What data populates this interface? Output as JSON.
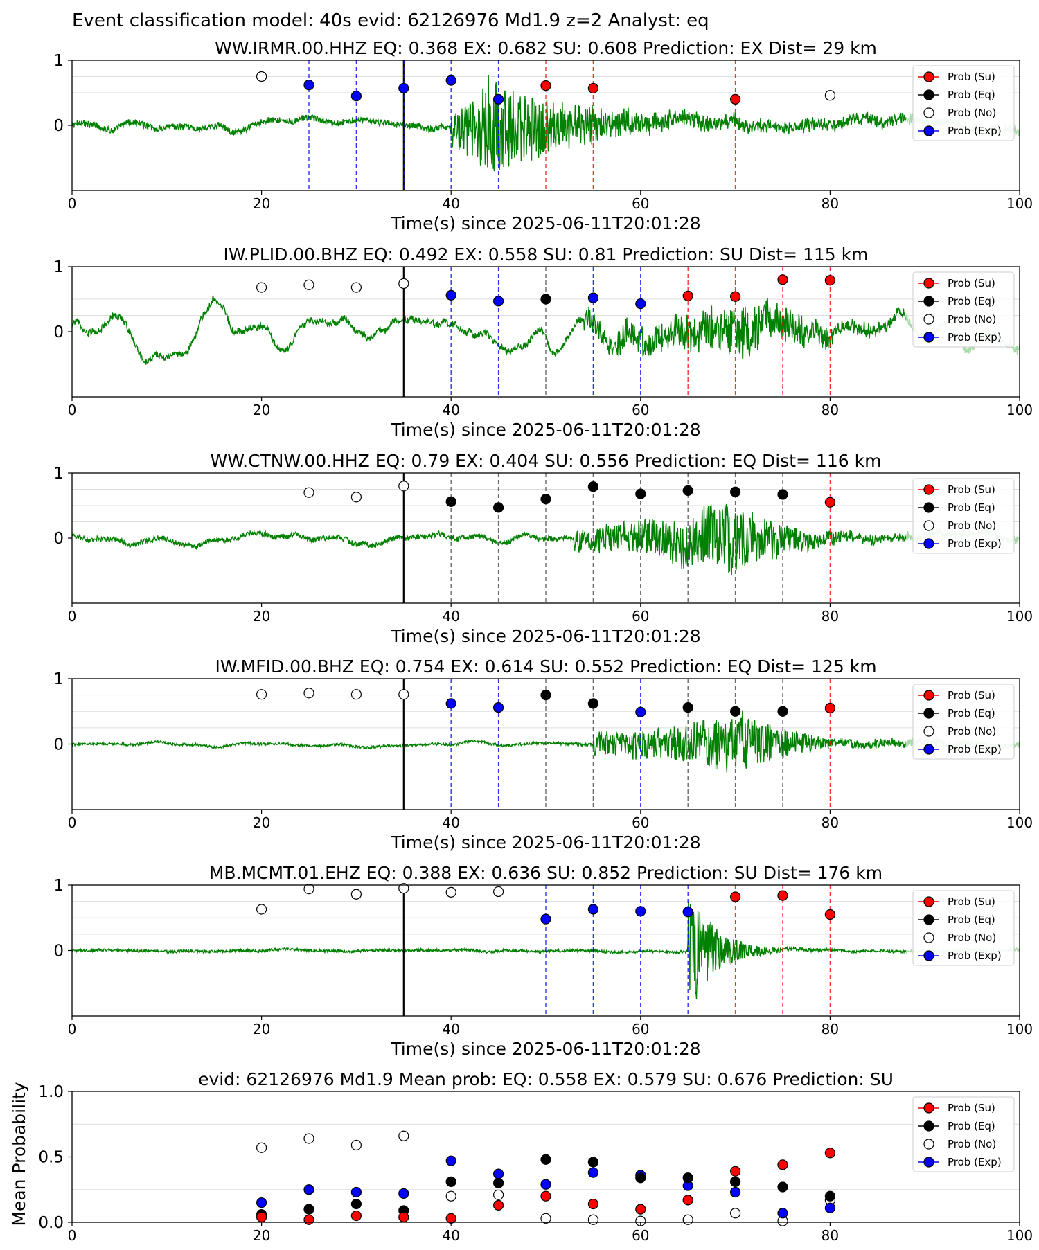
{
  "suptitle": "Event classification model: 40s evid: 62126976 Md1.9 z=2 Analyst: eq",
  "legend": [
    "Prob (Su)",
    "Prob (Eq)",
    "Prob (No)",
    "Prob (Exp)"
  ],
  "colors": {
    "su": "#ff0000",
    "eq": "#000000",
    "no": "#ffffff",
    "exp": "#0000ff",
    "waveform": "#008000",
    "waveform_faded": "#a8d8a8",
    "pick_line": "#000000"
  },
  "xlabel": "Time(s) since 2025-06-11T20:01:28",
  "xticks": [
    0,
    20,
    40,
    60,
    80,
    100
  ],
  "chart_data": [
    {
      "type": "scatter",
      "title": "WW.IRMR.00.HHZ   EQ: 0.368  EX: 0.682  SU: 0.608   Prediction: EX    Dist= 29 km",
      "xlabel": "Time(s) since 2025-06-11T20:01:28",
      "xlim": [
        0,
        100
      ],
      "yticks": [
        "1",
        "0"
      ],
      "pick_time": 35,
      "waveform": {
        "shape": "burst",
        "onset": 40,
        "peak": 44,
        "decay": 10,
        "amp": 0.8,
        "noise": 0.05,
        "lf": 0.05
      },
      "points": [
        {
          "x": 20,
          "y": 0.75,
          "class": "no"
        },
        {
          "x": 25,
          "y": 0.62,
          "class": "exp"
        },
        {
          "x": 30,
          "y": 0.45,
          "class": "exp"
        },
        {
          "x": 35,
          "y": 0.57,
          "class": "exp"
        },
        {
          "x": 40,
          "y": 0.69,
          "class": "exp"
        },
        {
          "x": 45,
          "y": 0.4,
          "class": "exp"
        },
        {
          "x": 50,
          "y": 0.61,
          "class": "su"
        },
        {
          "x": 55,
          "y": 0.57,
          "class": "su"
        },
        {
          "x": 70,
          "y": 0.4,
          "class": "su"
        },
        {
          "x": 80,
          "y": 0.46,
          "class": "no"
        }
      ]
    },
    {
      "type": "scatter",
      "title": "IW.PLID.00.BHZ   EQ: 0.492  EX: 0.558  SU: 0.81   Prediction: SU    Dist= 115 km",
      "xlabel": "Time(s) since 2025-06-11T20:01:28",
      "xlim": [
        0,
        100
      ],
      "yticks": [
        "1",
        "0"
      ],
      "pick_time": 35,
      "waveform": {
        "shape": "burst",
        "onset": 54,
        "peak": 71,
        "decay": 8,
        "amp": 0.45,
        "noise": 0.05,
        "lf": 0.18
      },
      "points": [
        {
          "x": 20,
          "y": 0.68,
          "class": "no"
        },
        {
          "x": 25,
          "y": 0.72,
          "class": "no"
        },
        {
          "x": 30,
          "y": 0.68,
          "class": "no"
        },
        {
          "x": 35,
          "y": 0.74,
          "class": "no"
        },
        {
          "x": 40,
          "y": 0.56,
          "class": "exp"
        },
        {
          "x": 45,
          "y": 0.47,
          "class": "exp"
        },
        {
          "x": 50,
          "y": 0.5,
          "class": "eq"
        },
        {
          "x": 55,
          "y": 0.52,
          "class": "exp"
        },
        {
          "x": 60,
          "y": 0.43,
          "class": "exp"
        },
        {
          "x": 65,
          "y": 0.55,
          "class": "su"
        },
        {
          "x": 70,
          "y": 0.54,
          "class": "su"
        },
        {
          "x": 75,
          "y": 0.8,
          "class": "su"
        },
        {
          "x": 80,
          "y": 0.79,
          "class": "su"
        }
      ]
    },
    {
      "type": "scatter",
      "title": "WW.CTNW.00.HHZ   EQ: 0.79  EX: 0.404  SU: 0.556   Prediction: EQ    Dist= 116 km",
      "xlabel": "Time(s) since 2025-06-11T20:01:28",
      "xlim": [
        0,
        100
      ],
      "yticks": [
        "1",
        "0"
      ],
      "pick_time": 35,
      "waveform": {
        "shape": "burst",
        "onset": 53,
        "peak": 70,
        "decay": 6,
        "amp": 0.55,
        "noise": 0.04,
        "lf": 0.05
      },
      "points": [
        {
          "x": 25,
          "y": 0.7,
          "class": "no"
        },
        {
          "x": 30,
          "y": 0.63,
          "class": "no"
        },
        {
          "x": 35,
          "y": 0.8,
          "class": "no"
        },
        {
          "x": 40,
          "y": 0.56,
          "class": "eq"
        },
        {
          "x": 45,
          "y": 0.47,
          "class": "eq"
        },
        {
          "x": 50,
          "y": 0.6,
          "class": "eq"
        },
        {
          "x": 55,
          "y": 0.79,
          "class": "eq"
        },
        {
          "x": 60,
          "y": 0.68,
          "class": "eq"
        },
        {
          "x": 65,
          "y": 0.73,
          "class": "eq"
        },
        {
          "x": 70,
          "y": 0.71,
          "class": "eq"
        },
        {
          "x": 75,
          "y": 0.67,
          "class": "eq"
        },
        {
          "x": 80,
          "y": 0.55,
          "class": "su"
        }
      ]
    },
    {
      "type": "scatter",
      "title": "IW.MFID.00.BHZ   EQ: 0.754  EX: 0.614  SU: 0.552   Prediction: EQ    Dist= 125 km",
      "xlabel": "Time(s) since 2025-06-11T20:01:28",
      "xlim": [
        0,
        100
      ],
      "yticks": [
        "1",
        "0"
      ],
      "pick_time": 35,
      "waveform": {
        "shape": "burst",
        "onset": 55,
        "peak": 71,
        "decay": 5,
        "amp": 0.5,
        "noise": 0.02,
        "lf": 0.02
      },
      "points": [
        {
          "x": 20,
          "y": 0.76,
          "class": "no"
        },
        {
          "x": 25,
          "y": 0.78,
          "class": "no"
        },
        {
          "x": 30,
          "y": 0.76,
          "class": "no"
        },
        {
          "x": 35,
          "y": 0.76,
          "class": "no"
        },
        {
          "x": 40,
          "y": 0.62,
          "class": "exp"
        },
        {
          "x": 45,
          "y": 0.56,
          "class": "exp"
        },
        {
          "x": 50,
          "y": 0.75,
          "class": "eq"
        },
        {
          "x": 55,
          "y": 0.62,
          "class": "eq"
        },
        {
          "x": 60,
          "y": 0.49,
          "class": "exp"
        },
        {
          "x": 65,
          "y": 0.56,
          "class": "eq"
        },
        {
          "x": 70,
          "y": 0.5,
          "class": "eq"
        },
        {
          "x": 75,
          "y": 0.5,
          "class": "eq"
        },
        {
          "x": 80,
          "y": 0.55,
          "class": "su"
        }
      ]
    },
    {
      "type": "scatter",
      "title": "MB.MCMT.01.EHZ   EQ: 0.388  EX: 0.636  SU: 0.852   Prediction: SU    Dist= 176 km",
      "xlabel": "Time(s) since 2025-06-11T20:01:28",
      "xlim": [
        0,
        100
      ],
      "yticks": [
        "1",
        "0"
      ],
      "pick_time": 35,
      "waveform": {
        "shape": "impulsive",
        "onset": 65,
        "peak": 65.5,
        "decay": 3,
        "amp": 0.9,
        "noise": 0.02,
        "lf": 0.01
      },
      "points": [
        {
          "x": 20,
          "y": 0.63,
          "class": "no"
        },
        {
          "x": 25,
          "y": 0.94,
          "class": "no"
        },
        {
          "x": 30,
          "y": 0.86,
          "class": "no"
        },
        {
          "x": 35,
          "y": 0.95,
          "class": "no"
        },
        {
          "x": 40,
          "y": 0.89,
          "class": "no"
        },
        {
          "x": 45,
          "y": 0.9,
          "class": "no"
        },
        {
          "x": 50,
          "y": 0.48,
          "class": "exp"
        },
        {
          "x": 55,
          "y": 0.63,
          "class": "exp"
        },
        {
          "x": 60,
          "y": 0.6,
          "class": "exp"
        },
        {
          "x": 65,
          "y": 0.59,
          "class": "exp"
        },
        {
          "x": 70,
          "y": 0.82,
          "class": "su"
        },
        {
          "x": 75,
          "y": 0.84,
          "class": "su"
        },
        {
          "x": 80,
          "y": 0.55,
          "class": "su"
        }
      ]
    },
    {
      "type": "scatter",
      "title": "evid: 62126976  Md1.9   Mean prob:   EQ: 0.558  EX: 0.579  SU: 0.676   Prediction: SU",
      "ylabel": "Mean Probability",
      "xlim": [
        0,
        100
      ],
      "ylim": [
        0,
        1
      ],
      "yticks": [
        "1.0",
        "0.5",
        "0.0"
      ],
      "x": [
        20,
        25,
        30,
        35,
        40,
        45,
        50,
        55,
        60,
        65,
        70,
        75,
        80
      ],
      "series": [
        {
          "name": "Prob (No)",
          "class": "no",
          "values": [
            0.57,
            0.64,
            0.59,
            0.66,
            0.2,
            0.21,
            0.03,
            0.02,
            0.01,
            0.02,
            0.07,
            0.01,
            0.17
          ]
        },
        {
          "name": "Prob (Exp)",
          "class": "exp",
          "values": [
            0.15,
            0.25,
            0.23,
            0.22,
            0.47,
            0.37,
            0.29,
            0.38,
            0.36,
            0.28,
            0.23,
            0.07,
            0.11
          ]
        },
        {
          "name": "Prob (Eq)",
          "class": "eq",
          "values": [
            0.06,
            0.1,
            0.14,
            0.09,
            0.31,
            0.3,
            0.48,
            0.46,
            0.34,
            0.34,
            0.31,
            0.27,
            0.2
          ]
        },
        {
          "name": "Prob (Su)",
          "class": "su",
          "values": [
            0.04,
            0.02,
            0.05,
            0.04,
            0.03,
            0.13,
            0.2,
            0.14,
            0.1,
            0.17,
            0.39,
            0.44,
            0.53
          ]
        }
      ]
    }
  ]
}
